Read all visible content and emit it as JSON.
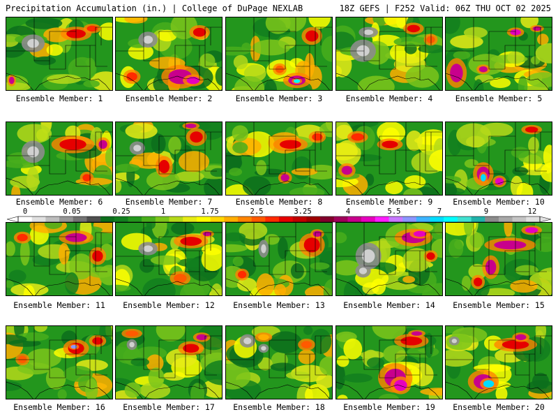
{
  "header": {
    "left": "Precipitation Accumulation (in.) | College of DuPage NEXLAB",
    "right": "18Z GEFS | F252 Valid: 06Z THU OCT 02 2025"
  },
  "colorbar": {
    "tick_labels": [
      "0",
      "0.05",
      "0.25",
      "1",
      "1.75",
      "2.5",
      "3.25",
      "4",
      "5.5",
      "7",
      "9",
      "12"
    ],
    "tick_fracs": [
      0.0,
      0.077,
      0.165,
      0.304,
      0.411,
      0.522,
      0.628,
      0.735,
      0.843,
      0.945,
      1.045,
      1.15
    ],
    "colors": [
      "#ffffff",
      "#e0e0e0",
      "#bdbdbd",
      "#969696",
      "#737373",
      "#4e4e4e",
      "#0c6e1c",
      "#127f1f",
      "#23961d",
      "#48ae1c",
      "#7cc61b",
      "#b5d91a",
      "#e6eb16",
      "#ffff00",
      "#ffd700",
      "#ffae00",
      "#ff8400",
      "#ff5a00",
      "#ff2a00",
      "#e60000",
      "#c20000",
      "#9e0000",
      "#82002c",
      "#a0005a",
      "#c8008c",
      "#e600be",
      "#ff1eff",
      "#c878ff",
      "#8c96ff",
      "#3cb4ff",
      "#00dcff",
      "#00ffff",
      "#40e0d0",
      "#20b2aa",
      "#8c8c8c",
      "#a8a8a8",
      "#c4c4c4",
      "#e0e0e0"
    ]
  },
  "members": [
    {
      "label": "Ensemble Member: 1",
      "hot": [
        [
          0.65,
          0.22,
          0.18,
          0.12,
          "#e60000"
        ],
        [
          0.8,
          0.15,
          0.1,
          0.08,
          "#ff2a00"
        ],
        [
          0.05,
          0.85,
          0.05,
          0.1,
          "#c8008c"
        ]
      ],
      "dry": [
        [
          0.25,
          0.35,
          0.18,
          0.2
        ]
      ]
    },
    {
      "label": "Ensemble Member: 2",
      "hot": [
        [
          0.6,
          0.8,
          0.22,
          0.2,
          "#c8008c"
        ],
        [
          0.72,
          0.85,
          0.12,
          0.1,
          "#e600be"
        ],
        [
          0.78,
          0.2,
          0.12,
          0.12,
          "#e60000"
        ],
        [
          0.15,
          0.8,
          0.1,
          0.12,
          "#ff2a00"
        ]
      ],
      "dry": [
        [
          0.3,
          0.3,
          0.15,
          0.18
        ]
      ]
    },
    {
      "label": "Ensemble Member: 3",
      "hot": [
        [
          0.66,
          0.85,
          0.16,
          0.13,
          "#c8008c"
        ],
        [
          0.66,
          0.86,
          0.06,
          0.05,
          "#00ffff"
        ],
        [
          0.8,
          0.25,
          0.12,
          0.15,
          "#e60000"
        ],
        [
          0.5,
          0.7,
          0.08,
          0.1,
          "#ff5a00"
        ]
      ],
      "dry": []
    },
    {
      "label": "Ensemble Member: 4",
      "hot": [
        [
          0.72,
          0.15,
          0.12,
          0.1,
          "#e60000"
        ],
        [
          0.88,
          0.3,
          0.08,
          0.1,
          "#ff5a00"
        ]
      ],
      "dry": [
        [
          0.25,
          0.45,
          0.2,
          0.25
        ],
        [
          0.3,
          0.2,
          0.15,
          0.12
        ]
      ]
    },
    {
      "label": "Ensemble Member: 5",
      "hot": [
        [
          0.1,
          0.75,
          0.12,
          0.25,
          "#c8008c"
        ],
        [
          0.35,
          0.7,
          0.08,
          0.08,
          "#c8008c"
        ],
        [
          0.65,
          0.2,
          0.1,
          0.08,
          "#e600be"
        ],
        [
          0.85,
          0.15,
          0.08,
          0.06,
          "#c8008c"
        ]
      ],
      "dry": []
    },
    {
      "label": "Ensemble Member: 6",
      "hot": [
        [
          0.62,
          0.3,
          0.25,
          0.15,
          "#e60000"
        ],
        [
          0.75,
          0.75,
          0.08,
          0.1,
          "#ff2a00"
        ],
        [
          0.9,
          0.3,
          0.08,
          0.12,
          "#c8008c"
        ]
      ],
      "dry": [
        [
          0.25,
          0.4,
          0.18,
          0.25
        ]
      ]
    },
    {
      "label": "Ensemble Member: 7",
      "hot": [
        [
          0.45,
          0.6,
          0.1,
          0.18,
          "#e60000"
        ],
        [
          0.75,
          0.2,
          0.12,
          0.15,
          "#e60000"
        ],
        [
          0.7,
          0.05,
          0.1,
          0.06,
          "#c8008c"
        ]
      ],
      "dry": [
        [
          0.2,
          0.35,
          0.12,
          0.15
        ]
      ]
    },
    {
      "label": "Ensemble Member: 8",
      "hot": [
        [
          0.6,
          0.3,
          0.2,
          0.12,
          "#e60000"
        ],
        [
          0.55,
          0.75,
          0.08,
          0.1,
          "#c8008c"
        ],
        [
          0.85,
          0.2,
          0.1,
          0.1,
          "#ff2a00"
        ]
      ],
      "dry": []
    },
    {
      "label": "Ensemble Member: 9",
      "hot": [
        [
          0.1,
          0.65,
          0.1,
          0.12,
          "#c8008c"
        ],
        [
          0.5,
          0.3,
          0.15,
          0.1,
          "#e60000"
        ],
        [
          0.2,
          0.2,
          0.12,
          0.1,
          "#ff2a00"
        ]
      ],
      "dry": []
    },
    {
      "label": "Ensemble Member: 10",
      "hot": [
        [
          0.35,
          0.7,
          0.12,
          0.2,
          "#c8008c"
        ],
        [
          0.35,
          0.75,
          0.05,
          0.1,
          "#00dcff"
        ],
        [
          0.5,
          0.8,
          0.08,
          0.1,
          "#e600be"
        ],
        [
          0.8,
          0.1,
          0.12,
          0.08,
          "#e60000"
        ]
      ],
      "dry": []
    },
    {
      "label": "Ensemble Member: 11",
      "hot": [
        [
          0.65,
          0.2,
          0.2,
          0.12,
          "#c8008c"
        ],
        [
          0.85,
          0.45,
          0.1,
          0.15,
          "#e60000"
        ],
        [
          0.15,
          0.2,
          0.1,
          0.1,
          "#ff2a00"
        ]
      ],
      "dry": []
    },
    {
      "label": "Ensemble Member: 12",
      "hot": [
        [
          0.7,
          0.25,
          0.2,
          0.12,
          "#e60000"
        ],
        [
          0.6,
          0.75,
          0.12,
          0.12,
          "#ff5a00"
        ],
        [
          0.85,
          0.15,
          0.08,
          0.06,
          "#c8008c"
        ]
      ],
      "dry": [
        [
          0.3,
          0.35,
          0.15,
          0.15
        ]
      ]
    },
    {
      "label": "Ensemble Member: 13",
      "hot": [
        [
          0.8,
          0.3,
          0.15,
          0.2,
          "#e60000"
        ],
        [
          0.85,
          0.15,
          0.08,
          0.08,
          "#c8008c"
        ],
        [
          0.15,
          0.7,
          0.08,
          0.1,
          "#ff2a00"
        ]
      ],
      "dry": [
        [
          0.35,
          0.35,
          0.08,
          0.2
        ]
      ]
    },
    {
      "label": "Ensemble Member: 14",
      "hot": [
        [
          0.72,
          0.2,
          0.22,
          0.15,
          "#c8008c"
        ],
        [
          0.78,
          0.15,
          0.12,
          0.08,
          "#e600be"
        ],
        [
          0.88,
          0.45,
          0.08,
          0.1,
          "#e60000"
        ]
      ],
      "dry": [
        [
          0.3,
          0.45,
          0.2,
          0.3
        ],
        [
          0.25,
          0.65,
          0.12,
          0.15
        ]
      ]
    },
    {
      "label": "Ensemble Member: 15",
      "hot": [
        [
          0.6,
          0.3,
          0.3,
          0.12,
          "#c8008c"
        ],
        [
          0.42,
          0.6,
          0.1,
          0.2,
          "#c8008c"
        ],
        [
          0.8,
          0.1,
          0.12,
          0.08,
          "#e600be"
        ],
        [
          0.3,
          0.8,
          0.08,
          0.12,
          "#e60000"
        ]
      ],
      "dry": []
    },
    {
      "label": "Ensemble Member: 16",
      "hot": [
        [
          0.65,
          0.3,
          0.15,
          0.15,
          "#e60000"
        ],
        [
          0.63,
          0.28,
          0.06,
          0.05,
          "#8c96ff"
        ],
        [
          0.85,
          0.2,
          0.1,
          0.1,
          "#e60000"
        ],
        [
          0.15,
          0.45,
          0.08,
          0.1,
          "#ff5a00"
        ]
      ],
      "dry": []
    },
    {
      "label": "Ensemble Member: 17",
      "hot": [
        [
          0.7,
          0.3,
          0.15,
          0.12,
          "#e60000"
        ],
        [
          0.8,
          0.15,
          0.1,
          0.08,
          "#c8008c"
        ],
        [
          0.15,
          0.1,
          0.12,
          0.08,
          "#ff5a00"
        ]
      ],
      "dry": [
        [
          0.15,
          0.25,
          0.08,
          0.12
        ]
      ]
    },
    {
      "label": "Ensemble Member: 18",
      "hot": [
        [
          0.75,
          0.25,
          0.1,
          0.1,
          "#ff5a00"
        ],
        [
          0.35,
          0.15,
          0.1,
          0.08,
          "#ffae00"
        ]
      ],
      "dry": [
        [
          0.2,
          0.2,
          0.12,
          0.15
        ],
        [
          0.35,
          0.3,
          0.08,
          0.1
        ]
      ]
    },
    {
      "label": "Ensemble Member: 19",
      "hot": [
        [
          0.55,
          0.7,
          0.2,
          0.25,
          "#c8008c"
        ],
        [
          0.6,
          0.8,
          0.12,
          0.15,
          "#e600be"
        ],
        [
          0.7,
          0.2,
          0.2,
          0.12,
          "#e60000"
        ],
        [
          0.75,
          0.1,
          0.1,
          0.06,
          "#c8008c"
        ]
      ],
      "dry": []
    },
    {
      "label": "Ensemble Member: 20",
      "hot": [
        [
          0.35,
          0.75,
          0.18,
          0.2,
          "#c8008c"
        ],
        [
          0.4,
          0.78,
          0.1,
          0.1,
          "#00dcff"
        ],
        [
          0.65,
          0.25,
          0.25,
          0.12,
          "#e60000"
        ],
        [
          0.7,
          0.15,
          0.1,
          0.08,
          "#c8008c"
        ]
      ],
      "dry": [
        [
          0.08,
          0.2,
          0.08,
          0.1
        ]
      ]
    }
  ]
}
